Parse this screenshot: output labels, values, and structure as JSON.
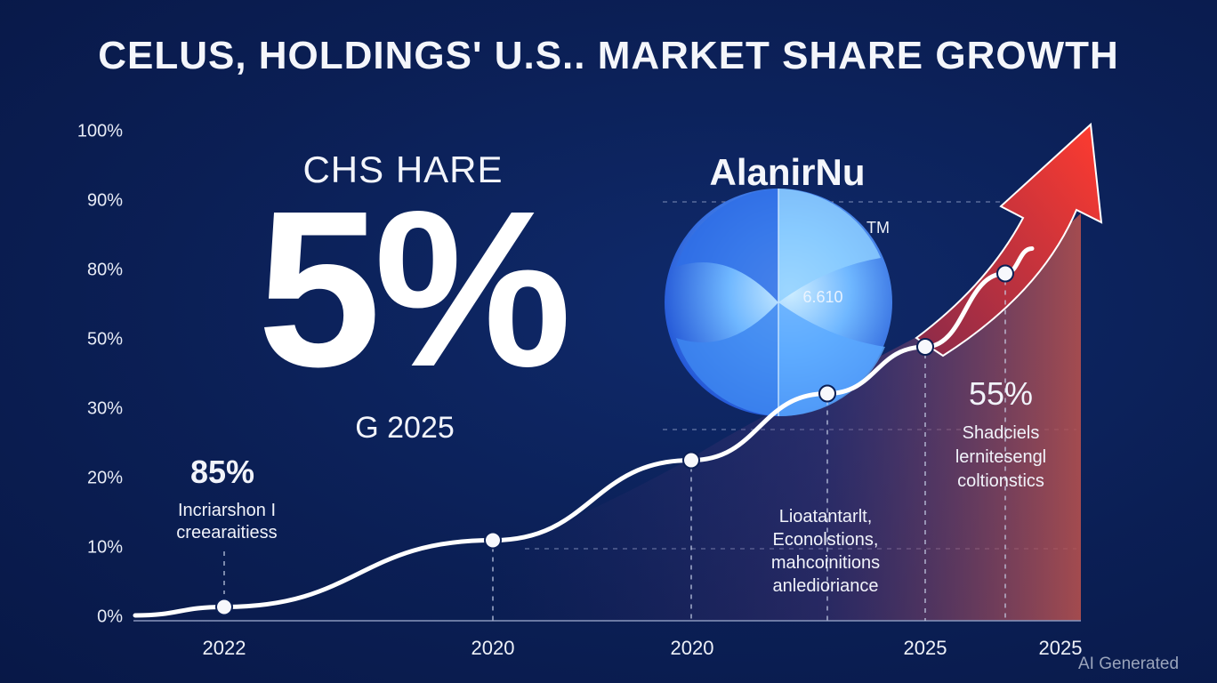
{
  "chart_data": {
    "type": "line",
    "title": "CELUS, HOLDINGS' U.S.. MARKET SHARE GROWTH",
    "y_tick_labels": [
      "100%",
      "90%",
      "80%",
      "50%",
      "30%",
      "20%",
      "10%",
      "0%"
    ],
    "x_tick_labels": [
      "2022",
      "2020",
      "2020",
      "2025",
      "2025"
    ],
    "series": [
      {
        "values": [
          1,
          11,
          23,
          33,
          40,
          51
        ]
      }
    ],
    "grid": false,
    "legend": "none"
  },
  "share_panel": {
    "label": "CHS HARE",
    "big_value": "5%",
    "year": "G 2025"
  },
  "brand": {
    "name": "AlanirNu",
    "tm": "TM",
    "globe_text": "6.610"
  },
  "annotations": {
    "left_pct": "85%",
    "left_text": [
      "Incriarshon I",
      "creearaitiess"
    ],
    "mid_text": [
      "Lioatantarlt,",
      "Econolstions,",
      "mahcoinitions",
      "anledioriance"
    ],
    "right_pct": "55%",
    "right_text": [
      "Shadciels",
      "lernitesengl",
      "coltionstics"
    ]
  },
  "colors": {
    "background": "#0b1f55",
    "line": "#ffffff",
    "arrow_start": "#8a2a4a",
    "arrow_end": "#ff3b2f",
    "globe_light": "#9fd8ff",
    "globe_dark": "#1c4fd6"
  },
  "watermark": "AI Generated"
}
